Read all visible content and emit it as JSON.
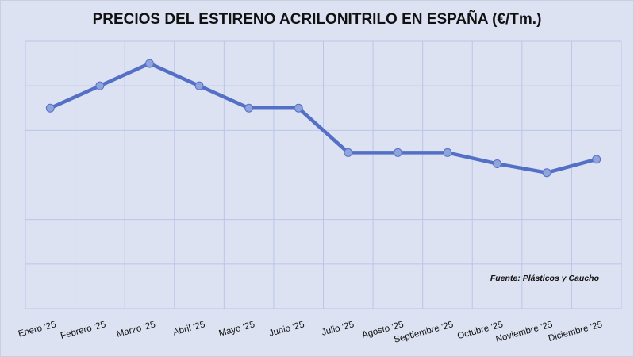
{
  "chart_data": {
    "type": "line",
    "title": "PRECIOS DEL ESTIRENO ACRILONITRILO EN ESPAÑA (€/Tm.)",
    "categories": [
      "Enero '25",
      "Febrero '25",
      "Marzo '25",
      "Abril '25",
      "Mayo '25",
      "Junio '25",
      "Julio '25",
      "Agosto '25",
      "Septiembre '25",
      "Octubre '25",
      "Noviembre '25",
      "Diciembre '25"
    ],
    "series": [
      {
        "values": [
          4.5,
          5.0,
          5.5,
          5.0,
          4.5,
          4.5,
          3.5,
          3.5,
          3.5,
          3.25,
          3.05,
          3.35
        ]
      }
    ],
    "value_note_hidden": null,
    "ylim": [
      0,
      6
    ],
    "y_tick_labels_shown": false,
    "grid": true,
    "legend": "none",
    "annotation": "Fuente: Plásticos y Caucho",
    "colors": {
      "line": "#5470c6",
      "marker": "#8fa3dc",
      "grid": "#b9c6ea",
      "background": "#dde2f2"
    }
  }
}
